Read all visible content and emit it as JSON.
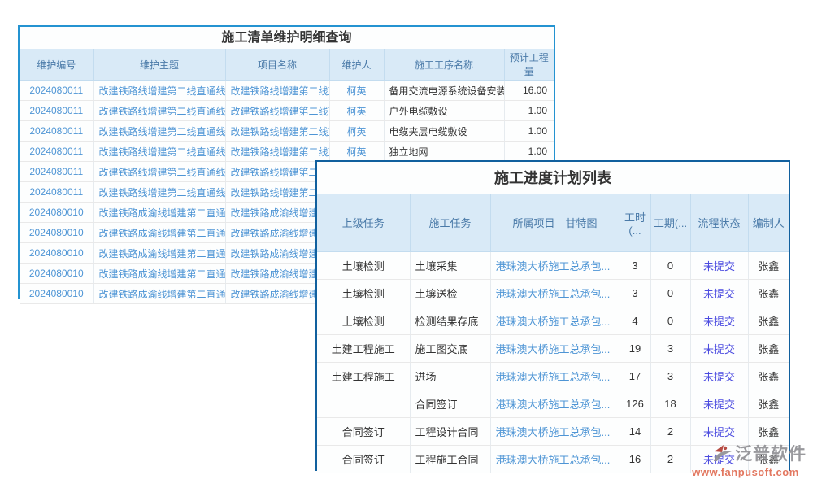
{
  "maintenance_table": {
    "title": "施工清单维护明细查询",
    "columns": [
      "维护编号",
      "维护主题",
      "项目名称",
      "维护人",
      "施工工序名称",
      "预计工程量"
    ],
    "rows": [
      [
        "2024080011",
        "改建铁路线增建第二线直通线",
        "改建铁路线增建第二线直通线",
        "柯英",
        "备用交流电源系统设备安装",
        "16.00"
      ],
      [
        "2024080011",
        "改建铁路线增建第二线直通线",
        "改建铁路线增建第二线直通线",
        "柯英",
        "户外电缆敷设",
        "1.00"
      ],
      [
        "2024080011",
        "改建铁路线增建第二线直通线",
        "改建铁路线增建第二线直通线",
        "柯英",
        "电缆夹层电缆敷设",
        "1.00"
      ],
      [
        "2024080011",
        "改建铁路线增建第二线直通线",
        "改建铁路线增建第二线直通线",
        "柯英",
        "独立地网",
        "1.00"
      ],
      [
        "2024080011",
        "改建铁路线增建第二线直通线",
        "改建铁路线增建第二线直通线",
        "",
        "",
        ""
      ],
      [
        "2024080011",
        "改建铁路线增建第二线直通线",
        "改建铁路线增建第二线直通线",
        "",
        "",
        ""
      ],
      [
        "2024080010",
        "改建铁路成渝线增建第二直通线",
        "改建铁路成渝线增建第二直通线",
        "",
        "",
        ""
      ],
      [
        "2024080010",
        "改建铁路成渝线增建第二直通线",
        "改建铁路成渝线增建第二直通线",
        "",
        "",
        ""
      ],
      [
        "2024080010",
        "改建铁路成渝线增建第二直通线",
        "改建铁路成渝线增建第二直通线",
        "",
        "",
        ""
      ],
      [
        "2024080010",
        "改建铁路成渝线增建第二直通线",
        "改建铁路成渝线增建第二直通线",
        "",
        "",
        ""
      ],
      [
        "2024080010",
        "改建铁路成渝线增建第二直通线",
        "改建铁路成渝线增建第二直通线",
        "",
        "",
        ""
      ]
    ]
  },
  "progress_table": {
    "title": "施工进度计划列表",
    "columns": [
      "上级任务",
      "施工任务",
      "所属项目—甘特图",
      "工时(...",
      "工期(...",
      "流程状态",
      "编制人"
    ],
    "rows": [
      [
        "土壤检测",
        "土壤采集",
        "港珠澳大桥施工总承包...",
        "3",
        "0",
        "未提交",
        "张鑫"
      ],
      [
        "土壤检测",
        "土壤送检",
        "港珠澳大桥施工总承包...",
        "3",
        "0",
        "未提交",
        "张鑫"
      ],
      [
        "土壤检测",
        "检测结果存底",
        "港珠澳大桥施工总承包...",
        "4",
        "0",
        "未提交",
        "张鑫"
      ],
      [
        "土建工程施工",
        "施工图交底",
        "港珠澳大桥施工总承包...",
        "19",
        "3",
        "未提交",
        "张鑫"
      ],
      [
        "土建工程施工",
        "进场",
        "港珠澳大桥施工总承包...",
        "17",
        "3",
        "未提交",
        "张鑫"
      ],
      [
        "",
        "合同签订",
        "港珠澳大桥施工总承包...",
        "126",
        "18",
        "未提交",
        "张鑫"
      ],
      [
        "合同签订",
        "工程设计合同",
        "港珠澳大桥施工总承包...",
        "14",
        "2",
        "未提交",
        "张鑫"
      ],
      [
        "合同签订",
        "工程施工合同",
        "港珠澳大桥施工总承包...",
        "16",
        "2",
        "未提交",
        "张鑫"
      ]
    ]
  },
  "status_color": "#4d4de0",
  "link_color": "#4e95d5",
  "back_panel_border": "#2493d1",
  "front_panel_border": "#11609e",
  "watermark": {
    "brand": "泛普软件",
    "url": "www.fanpusoft.com"
  }
}
